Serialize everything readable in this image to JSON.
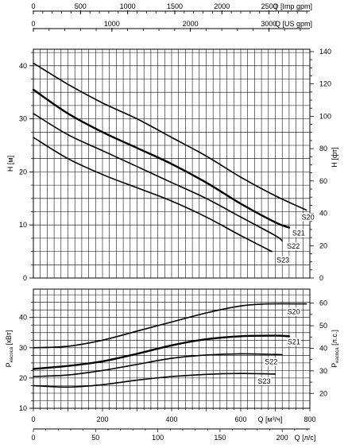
{
  "chart_data": [
    {
      "id": "head",
      "type": "line",
      "title": "",
      "xlabel": "Q [м³/ч]",
      "ylabel": "H [м]",
      "xlim": [
        0,
        800
      ],
      "ylim": [
        0,
        45
      ],
      "y_ticks": [
        0,
        10,
        20,
        30,
        40
      ],
      "right_axis": {
        "label": "H [фт]",
        "ticks": [
          0,
          20,
          40,
          60,
          80,
          100,
          120,
          140
        ]
      },
      "top_axes": [
        {
          "label": "Q [Imp gpm]",
          "ticks": [
            0,
            500,
            1000,
            1500,
            2000,
            2500
          ]
        },
        {
          "label": "Q [US gpm]",
          "ticks": [
            0,
            1000,
            2000,
            3000
          ]
        }
      ],
      "grid": true,
      "series": [
        {
          "name": "S20",
          "x": [
            0,
            100,
            200,
            300,
            400,
            500,
            600,
            700,
            790
          ],
          "y": [
            40.5,
            36.5,
            33.0,
            30.0,
            26.5,
            23.0,
            19.0,
            15.5,
            12.8
          ]
        },
        {
          "name": "S21",
          "x": [
            0,
            100,
            200,
            300,
            400,
            500,
            600,
            700,
            740
          ],
          "y": [
            35.5,
            31.0,
            27.5,
            24.5,
            21.5,
            18.0,
            14.0,
            10.5,
            9.5
          ]
        },
        {
          "name": "S22",
          "x": [
            0,
            100,
            200,
            300,
            400,
            500,
            600,
            700,
            720
          ],
          "y": [
            31.0,
            27.0,
            24.0,
            21.0,
            18.0,
            15.0,
            11.5,
            8.0,
            7.0
          ]
        },
        {
          "name": "S23",
          "x": [
            0,
            100,
            200,
            300,
            400,
            500,
            600,
            690
          ],
          "y": [
            26.5,
            22.5,
            19.5,
            17.0,
            14.5,
            11.5,
            8.0,
            5.0
          ]
        }
      ]
    },
    {
      "id": "power",
      "type": "line",
      "title": "",
      "xlabel": "Q [м³/ч]",
      "ylabel_main": "P",
      "ylabel_sub": "насоса",
      "ylabel_unit": "[кВт]",
      "xlim": [
        0,
        800
      ],
      "ylim": [
        10,
        47
      ],
      "x_ticks": [
        0,
        200,
        400,
        600,
        800
      ],
      "y_ticks": [
        10,
        20,
        30,
        40
      ],
      "right_axis": {
        "label_main": "P",
        "label_sub": "насоса",
        "label_unit": "[л.с.]",
        "ticks": [
          20,
          30,
          40,
          50,
          60
        ]
      },
      "bottom_axis2": {
        "label": "Q [л/с]",
        "ticks": [
          0,
          50,
          100,
          150,
          200
        ]
      },
      "grid": true,
      "series": [
        {
          "name": "S20",
          "x": [
            0,
            100,
            200,
            300,
            400,
            500,
            600,
            680,
            790
          ],
          "y": [
            30.0,
            30.5,
            32.5,
            35.5,
            38.5,
            41.5,
            43.8,
            44.5,
            44.5
          ]
        },
        {
          "name": "S21",
          "x": [
            0,
            100,
            200,
            300,
            400,
            500,
            600,
            700,
            740
          ],
          "y": [
            23.0,
            24.0,
            25.5,
            28.0,
            30.8,
            32.8,
            33.8,
            34.0,
            33.8
          ]
        },
        {
          "name": "S22",
          "x": [
            0,
            100,
            200,
            300,
            400,
            500,
            600,
            700,
            720
          ],
          "y": [
            20.5,
            21.0,
            22.5,
            24.5,
            26.5,
            27.6,
            28.0,
            27.8,
            27.7
          ]
        },
        {
          "name": "S23",
          "x": [
            0,
            100,
            200,
            300,
            400,
            500,
            600,
            700
          ],
          "y": [
            17.5,
            17.0,
            17.8,
            19.3,
            20.5,
            21.2,
            21.5,
            21.3
          ]
        }
      ]
    }
  ]
}
